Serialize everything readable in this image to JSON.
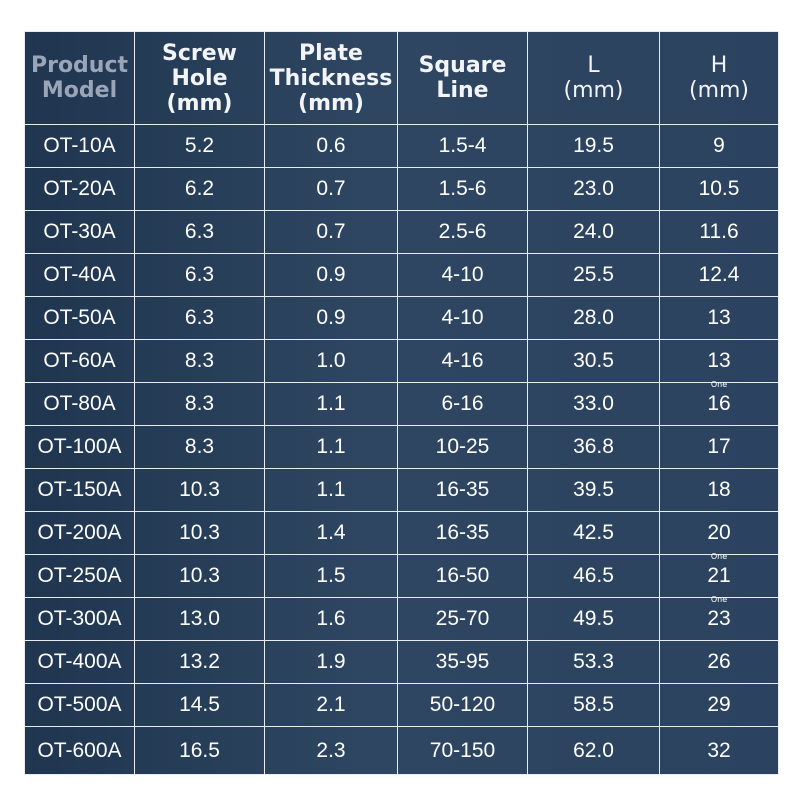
{
  "table": {
    "headers": [
      {
        "lines": [
          "Product",
          "Model"
        ]
      },
      {
        "lines": [
          "Screw",
          "Hole",
          "(mm)"
        ]
      },
      {
        "lines": [
          "Plate",
          "Thickness",
          "(mm)"
        ]
      },
      {
        "lines": [
          "Square",
          "Line"
        ]
      },
      {
        "lines": [
          "L",
          "(mm)"
        ]
      },
      {
        "lines": [
          "H",
          "(mm)"
        ]
      }
    ],
    "rows": [
      [
        "OT-10A",
        "5.2",
        "0.6",
        "1.5-4",
        "19.5",
        "9"
      ],
      [
        "OT-20A",
        "6.2",
        "0.7",
        "1.5-6",
        "23.0",
        "10.5"
      ],
      [
        "OT-30A",
        "6.3",
        "0.7",
        "2.5-6",
        "24.0",
        "11.6"
      ],
      [
        "OT-40A",
        "6.3",
        "0.9",
        "4-10",
        "25.5",
        "12.4"
      ],
      [
        "OT-50A",
        "6.3",
        "0.9",
        "4-10",
        "28.0",
        "13"
      ],
      [
        "OT-60A",
        "8.3",
        "1.0",
        "4-16",
        "30.5",
        "13"
      ],
      [
        "OT-80A",
        "8.3",
        "1.1",
        "6-16",
        "33.0",
        "16"
      ],
      [
        "OT-100A",
        "8.3",
        "1.1",
        "10-25",
        "36.8",
        "17"
      ],
      [
        "OT-150A",
        "10.3",
        "1.1",
        "16-35",
        "39.5",
        "18"
      ],
      [
        "OT-200A",
        "10.3",
        "1.4",
        "16-35",
        "42.5",
        "20"
      ],
      [
        "OT-250A",
        "10.3",
        "1.5",
        "16-50",
        "46.5",
        "21"
      ],
      [
        "OT-300A",
        "13.0",
        "1.6",
        "25-70",
        "49.5",
        "23"
      ],
      [
        "OT-400A",
        "13.2",
        "1.9",
        "35-95",
        "53.3",
        "26"
      ],
      [
        "OT-500A",
        "14.5",
        "2.1",
        "50-120",
        "58.5",
        "29"
      ],
      [
        "OT-600A",
        "16.5",
        "2.3",
        "70-150",
        "62.0",
        "32"
      ]
    ],
    "notes": {
      "row_7": "One",
      "row_11": "One",
      "row_12": "One"
    }
  },
  "colors": {
    "background": "#1f3550",
    "grid": "#e8ecf1",
    "text": "#ffffff",
    "first_header": "#9aa6b8"
  }
}
